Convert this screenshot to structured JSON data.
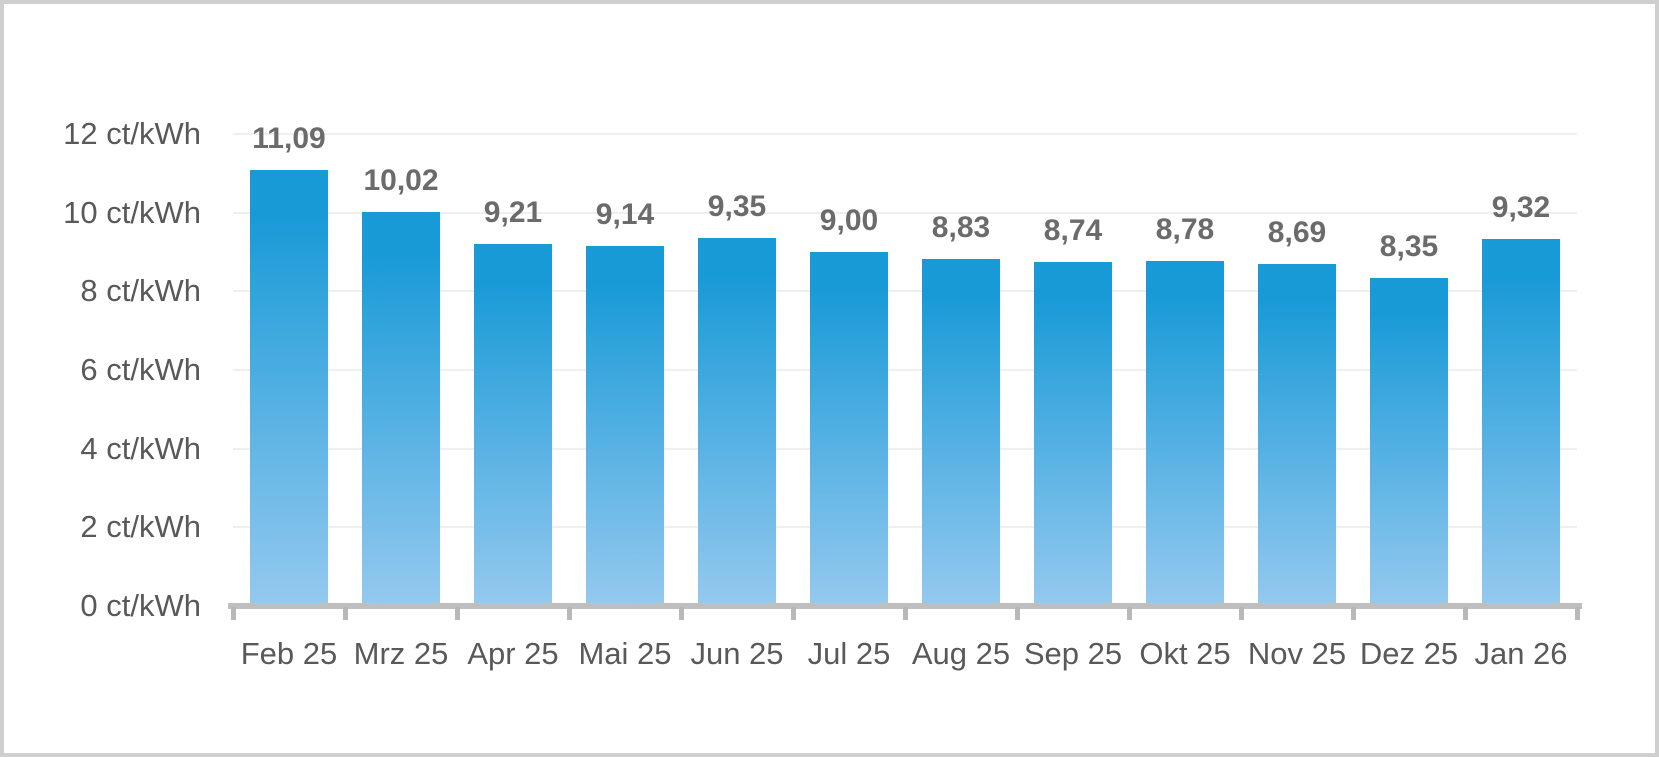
{
  "chart_data": {
    "type": "bar",
    "title": "",
    "unit": "ct/kWh",
    "categories": [
      "Feb 25",
      "Mrz 25",
      "Apr 25",
      "Mai 25",
      "Jun 25",
      "Jul 25",
      "Aug 25",
      "Sep 25",
      "Okt 25",
      "Nov 25",
      "Dez 25",
      "Jan 26"
    ],
    "values": [
      11.09,
      10.02,
      9.21,
      9.14,
      9.35,
      9.0,
      8.83,
      8.74,
      8.78,
      8.69,
      8.35,
      9.32
    ],
    "value_labels": [
      "11,09",
      "10,02",
      "9,21",
      "9,14",
      "9,35",
      "9,00",
      "8,83",
      "8,74",
      "8,78",
      "8,69",
      "8,35",
      "9,32"
    ],
    "xlabel": "",
    "ylabel": "ct/kWh",
    "ylim": [
      0,
      12
    ],
    "grid": true,
    "legend_position": "none",
    "y_ticks": [
      {
        "value": 0,
        "label": "0 ct/kWh"
      },
      {
        "value": 2,
        "label": "2 ct/kWh"
      },
      {
        "value": 4,
        "label": "4 ct/kWh"
      },
      {
        "value": 6,
        "label": "6 ct/kWh"
      },
      {
        "value": 8,
        "label": "8 ct/kWh"
      },
      {
        "value": 10,
        "label": "10 ct/kWh"
      },
      {
        "value": 12,
        "label": "12 ct/kWh"
      }
    ]
  },
  "colors": {
    "bar_gradient_top": "#189ad7",
    "bar_gradient_bottom": "#95c9ef",
    "axis_line": "#bfbfbf",
    "axis_tick": "#b8b8b8",
    "gridline": "#efefef",
    "tick_label_text": "#595959",
    "data_label_text": "#6b6b6b",
    "frame_border": "#cfcfcf",
    "background": "#ffffff"
  }
}
